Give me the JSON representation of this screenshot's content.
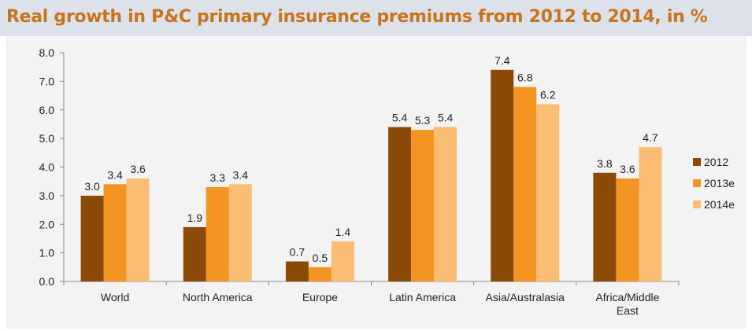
{
  "title": "Real growth in P&C primary insurance premiums from 2012 to 2014, in %",
  "chart_data": {
    "type": "bar",
    "title": "Real growth in P&C primary insurance premiums from 2012 to 2014, in %",
    "categories": [
      [
        "World"
      ],
      [
        "North America"
      ],
      [
        "Europe"
      ],
      [
        "Latin America"
      ],
      [
        "Asia/Australasia"
      ],
      [
        "Africa/Middle",
        "East"
      ]
    ],
    "series": [
      {
        "name": "2012",
        "color": "#8b4a06",
        "values": [
          3.0,
          1.9,
          0.7,
          5.4,
          7.4,
          3.8
        ]
      },
      {
        "name": "2013e",
        "color": "#f39423",
        "values": [
          3.4,
          3.3,
          0.5,
          5.3,
          6.8,
          3.6
        ]
      },
      {
        "name": "2014e",
        "color": "#fbbd74",
        "values": [
          3.6,
          3.4,
          1.4,
          5.4,
          6.2,
          4.7
        ]
      }
    ],
    "ylim": [
      0,
      8
    ],
    "yticks": [
      "0.0",
      "1.0",
      "2.0",
      "3.0",
      "4.0",
      "5.0",
      "6.0",
      "7.0",
      "8.0"
    ],
    "xlabel": "",
    "ylabel": "",
    "grid": false,
    "legend": "right"
  }
}
